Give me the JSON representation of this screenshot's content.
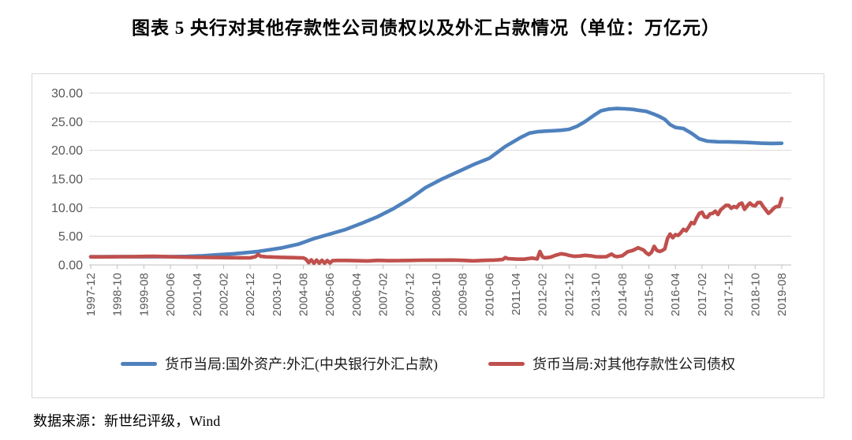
{
  "header": {
    "title": "图表 5  央行对其他存款性公司债权以及外汇占款情况（单位：万亿元）"
  },
  "footer": {
    "source": "数据来源：新世纪评级，Wind"
  },
  "chart_data": {
    "type": "line",
    "title": "央行对其他存款性公司债权以及外汇占款情况",
    "unit": "万亿元",
    "grid": true,
    "legend_position": "bottom",
    "colors": {
      "grid_line": "#d9d9d9",
      "axis_line": "#bfbfbf",
      "tick_label": "#595959"
    },
    "y_axis": {
      "min": 0,
      "max": 30,
      "step": 5,
      "tick_labels": [
        "30.00",
        "25.00",
        "20.00",
        "15.00",
        "10.00",
        "5.00",
        "0.00"
      ]
    },
    "x_axis": {
      "start_month": "1997-12",
      "end_month": "2019-08",
      "tick_interval_months": 10,
      "tick_labels": [
        "1997-12",
        "1998-10",
        "1999-08",
        "2000-06",
        "2001-04",
        "2002-02",
        "2002-12",
        "2003-10",
        "2004-08",
        "2005-06",
        "2006-04",
        "2007-02",
        "2007-12",
        "2008-10",
        "2009-08",
        "2010-06",
        "2011-04",
        "2012-02",
        "2012-12",
        "2013-10",
        "2014-08",
        "2015-06",
        "2016-04",
        "2017-02",
        "2017-12",
        "2018-10",
        "2019-08"
      ]
    },
    "series": [
      {
        "name": "货币当局:国外资产:外汇(中央银行外汇占款)",
        "color": "#4F81BD",
        "points": [
          [
            0,
            1.45
          ],
          [
            6,
            1.44
          ],
          [
            12,
            1.44
          ],
          [
            18,
            1.43
          ],
          [
            24,
            1.43
          ],
          [
            30,
            1.44
          ],
          [
            36,
            1.48
          ],
          [
            42,
            1.6
          ],
          [
            48,
            1.77
          ],
          [
            54,
            1.95
          ],
          [
            60,
            2.21
          ],
          [
            63,
            2.35
          ],
          [
            66,
            2.56
          ],
          [
            72,
            2.98
          ],
          [
            78,
            3.61
          ],
          [
            84,
            4.59
          ],
          [
            90,
            5.39
          ],
          [
            96,
            6.21
          ],
          [
            102,
            7.28
          ],
          [
            108,
            8.44
          ],
          [
            114,
            9.85
          ],
          [
            120,
            11.52
          ],
          [
            126,
            13.5
          ],
          [
            132,
            14.96
          ],
          [
            138,
            16.23
          ],
          [
            144,
            17.51
          ],
          [
            150,
            18.63
          ],
          [
            156,
            20.68
          ],
          [
            162,
            22.31
          ],
          [
            165,
            23.0
          ],
          [
            168,
            23.24
          ],
          [
            171,
            23.35
          ],
          [
            174,
            23.42
          ],
          [
            177,
            23.5
          ],
          [
            180,
            23.67
          ],
          [
            183,
            24.2
          ],
          [
            186,
            25.0
          ],
          [
            189,
            26.0
          ],
          [
            192,
            26.9
          ],
          [
            195,
            27.2
          ],
          [
            198,
            27.3
          ],
          [
            201,
            27.25
          ],
          [
            204,
            27.15
          ],
          [
            206,
            27.0
          ],
          [
            209,
            26.8
          ],
          [
            212,
            26.3
          ],
          [
            214,
            25.9
          ],
          [
            216,
            25.4
          ],
          [
            218,
            24.5
          ],
          [
            220,
            24.0
          ],
          [
            223,
            23.8
          ],
          [
            226,
            23.0
          ],
          [
            229,
            22.0
          ],
          [
            232,
            21.6
          ],
          [
            236,
            21.5
          ],
          [
            240,
            21.48
          ],
          [
            244,
            21.42
          ],
          [
            248,
            21.35
          ],
          [
            252,
            21.25
          ],
          [
            256,
            21.2
          ],
          [
            260,
            21.23
          ]
        ]
      },
      {
        "name": "货币当局:对其他存款性公司债权",
        "color": "#C0504D",
        "points": [
          [
            0,
            1.4
          ],
          [
            4,
            1.4
          ],
          [
            8,
            1.42
          ],
          [
            12,
            1.45
          ],
          [
            16,
            1.44
          ],
          [
            20,
            1.48
          ],
          [
            24,
            1.52
          ],
          [
            28,
            1.46
          ],
          [
            32,
            1.4
          ],
          [
            36,
            1.36
          ],
          [
            40,
            1.33
          ],
          [
            44,
            1.31
          ],
          [
            48,
            1.29
          ],
          [
            52,
            1.27
          ],
          [
            56,
            1.25
          ],
          [
            60,
            1.24
          ],
          [
            62,
            1.45
          ],
          [
            63,
            1.85
          ],
          [
            64,
            1.5
          ],
          [
            66,
            1.42
          ],
          [
            69,
            1.36
          ],
          [
            72,
            1.32
          ],
          [
            76,
            1.28
          ],
          [
            80,
            1.22
          ],
          [
            81,
            1.0
          ],
          [
            82,
            0.4
          ],
          [
            83,
            0.9
          ],
          [
            84,
            0.3
          ],
          [
            85,
            0.85
          ],
          [
            86,
            0.32
          ],
          [
            87,
            0.82
          ],
          [
            88,
            0.3
          ],
          [
            89,
            0.78
          ],
          [
            90,
            0.35
          ],
          [
            91,
            0.75
          ],
          [
            93,
            0.78
          ],
          [
            96,
            0.78
          ],
          [
            100,
            0.74
          ],
          [
            104,
            0.7
          ],
          [
            108,
            0.8
          ],
          [
            112,
            0.74
          ],
          [
            116,
            0.76
          ],
          [
            120,
            0.79
          ],
          [
            124,
            0.82
          ],
          [
            128,
            0.84
          ],
          [
            132,
            0.84
          ],
          [
            136,
            0.86
          ],
          [
            140,
            0.8
          ],
          [
            144,
            0.72
          ],
          [
            148,
            0.8
          ],
          [
            152,
            0.86
          ],
          [
            155,
            0.95
          ],
          [
            156,
            1.3
          ],
          [
            157,
            1.1
          ],
          [
            160,
            1.02
          ],
          [
            163,
            1.0
          ],
          [
            166,
            1.2
          ],
          [
            168,
            1.05
          ],
          [
            169,
            2.35
          ],
          [
            170,
            1.4
          ],
          [
            171,
            1.25
          ],
          [
            173,
            1.35
          ],
          [
            175,
            1.7
          ],
          [
            177,
            1.95
          ],
          [
            179,
            1.8
          ],
          [
            180,
            1.67
          ],
          [
            182,
            1.5
          ],
          [
            184,
            1.55
          ],
          [
            186,
            1.68
          ],
          [
            188,
            1.6
          ],
          [
            190,
            1.45
          ],
          [
            192,
            1.42
          ],
          [
            194,
            1.45
          ],
          [
            196,
            1.9
          ],
          [
            197,
            1.55
          ],
          [
            198,
            1.45
          ],
          [
            200,
            1.6
          ],
          [
            202,
            2.3
          ],
          [
            204,
            2.55
          ],
          [
            206,
            3.0
          ],
          [
            208,
            2.6
          ],
          [
            209,
            2.1
          ],
          [
            210,
            1.8
          ],
          [
            211,
            2.2
          ],
          [
            212,
            3.25
          ],
          [
            213,
            2.55
          ],
          [
            214,
            2.35
          ],
          [
            215,
            2.5
          ],
          [
            216,
            2.8
          ],
          [
            217,
            4.6
          ],
          [
            218,
            5.4
          ],
          [
            219,
            4.75
          ],
          [
            220,
            5.3
          ],
          [
            221,
            5.15
          ],
          [
            222,
            5.6
          ],
          [
            223,
            6.2
          ],
          [
            224,
            5.95
          ],
          [
            225,
            6.6
          ],
          [
            226,
            7.4
          ],
          [
            227,
            7.2
          ],
          [
            228,
            8.2
          ],
          [
            229,
            9.0
          ],
          [
            230,
            9.2
          ],
          [
            231,
            8.4
          ],
          [
            232,
            8.3
          ],
          [
            233,
            8.9
          ],
          [
            234,
            9.0
          ],
          [
            235,
            9.4
          ],
          [
            236,
            8.8
          ],
          [
            237,
            9.6
          ],
          [
            238,
            10.0
          ],
          [
            239,
            10.4
          ],
          [
            240,
            10.4
          ],
          [
            241,
            9.9
          ],
          [
            242,
            10.2
          ],
          [
            243,
            10.0
          ],
          [
            244,
            10.6
          ],
          [
            245,
            10.8
          ],
          [
            246,
            9.7
          ],
          [
            247,
            10.3
          ],
          [
            248,
            10.8
          ],
          [
            249,
            10.4
          ],
          [
            250,
            10.3
          ],
          [
            251,
            10.9
          ],
          [
            252,
            10.9
          ],
          [
            253,
            10.2
          ],
          [
            254,
            9.6
          ],
          [
            255,
            9.0
          ],
          [
            256,
            9.4
          ],
          [
            257,
            9.9
          ],
          [
            258,
            10.2
          ],
          [
            259,
            10.2
          ],
          [
            260,
            11.6
          ]
        ]
      }
    ]
  }
}
